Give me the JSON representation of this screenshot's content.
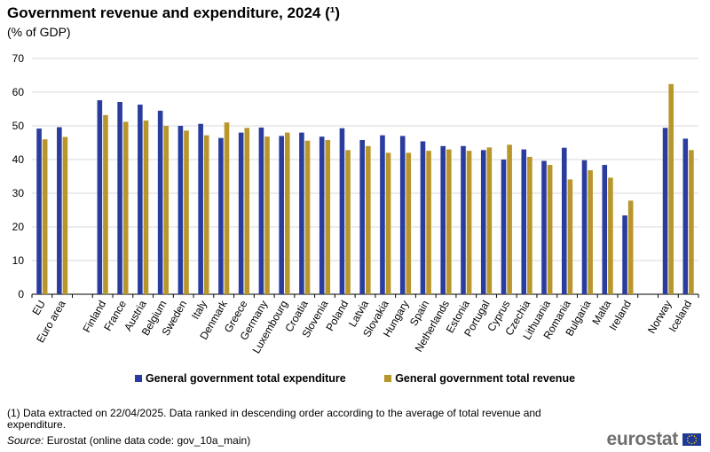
{
  "header": {
    "title": "Government revenue and expenditure, 2024 (¹)",
    "subtitle": "(% of GDP)"
  },
  "legend": {
    "expenditure": "General government total expenditure",
    "revenue": "General government total revenue"
  },
  "footer": {
    "footnote": "(1) Data extracted on 22/04/2025. Data ranked in descending order according to the average of total revenue and expenditure.",
    "source_label": "Source:",
    "source_text": "Eurostat (online data code: gov_10a_main)",
    "logo_text": "eurostat"
  },
  "colors": {
    "expenditure": "#2a3d9e",
    "revenue": "#b8962b",
    "grid": "#d9d9d9",
    "axis": "#000000"
  },
  "chart_data": {
    "type": "bar",
    "title": "Government revenue and expenditure, 2024 (¹)",
    "ylabel": "% of GDP",
    "ylim": [
      0,
      70
    ],
    "yticks": [
      0,
      10,
      20,
      30,
      40,
      50,
      60,
      70
    ],
    "grid": true,
    "legend_position": "bottom",
    "categories": [
      "EU",
      "Euro area",
      "",
      "Finland",
      "France",
      "Austria",
      "Belgium",
      "Sweden",
      "Italy",
      "Denmark",
      "Greece",
      "Germany",
      "Luxembourg",
      "Croatia",
      "Slovenia",
      "Poland",
      "Latvia",
      "Slovakia",
      "Hungary",
      "Spain",
      "Netherlands",
      "Estonia",
      "Portugal",
      "Cyprus",
      "Czechia",
      "Lithuania",
      "Romania",
      "Bulgaria",
      "Malta",
      "Ireland",
      "",
      "Norway",
      "Iceland"
    ],
    "series": [
      {
        "name": "General government total expenditure",
        "values": [
          49.2,
          49.6,
          null,
          57.6,
          57.1,
          56.3,
          54.5,
          50.0,
          50.6,
          46.4,
          48.0,
          49.5,
          47.0,
          48.0,
          46.8,
          49.3,
          45.8,
          47.2,
          47.0,
          45.4,
          44.0,
          44.0,
          42.8,
          40.0,
          43.0,
          39.6,
          43.5,
          39.8,
          38.4,
          23.4,
          null,
          49.4,
          46.2
        ]
      },
      {
        "name": "General government total revenue",
        "values": [
          46.0,
          46.7,
          null,
          53.2,
          51.2,
          51.6,
          50.0,
          48.6,
          47.2,
          51.0,
          49.4,
          46.8,
          48.0,
          45.6,
          45.8,
          42.8,
          44.0,
          42.0,
          42.0,
          42.6,
          43.0,
          42.6,
          43.6,
          44.4,
          40.8,
          38.4,
          34.1,
          36.8,
          34.6,
          27.8,
          null,
          62.4,
          42.8
        ]
      }
    ]
  }
}
